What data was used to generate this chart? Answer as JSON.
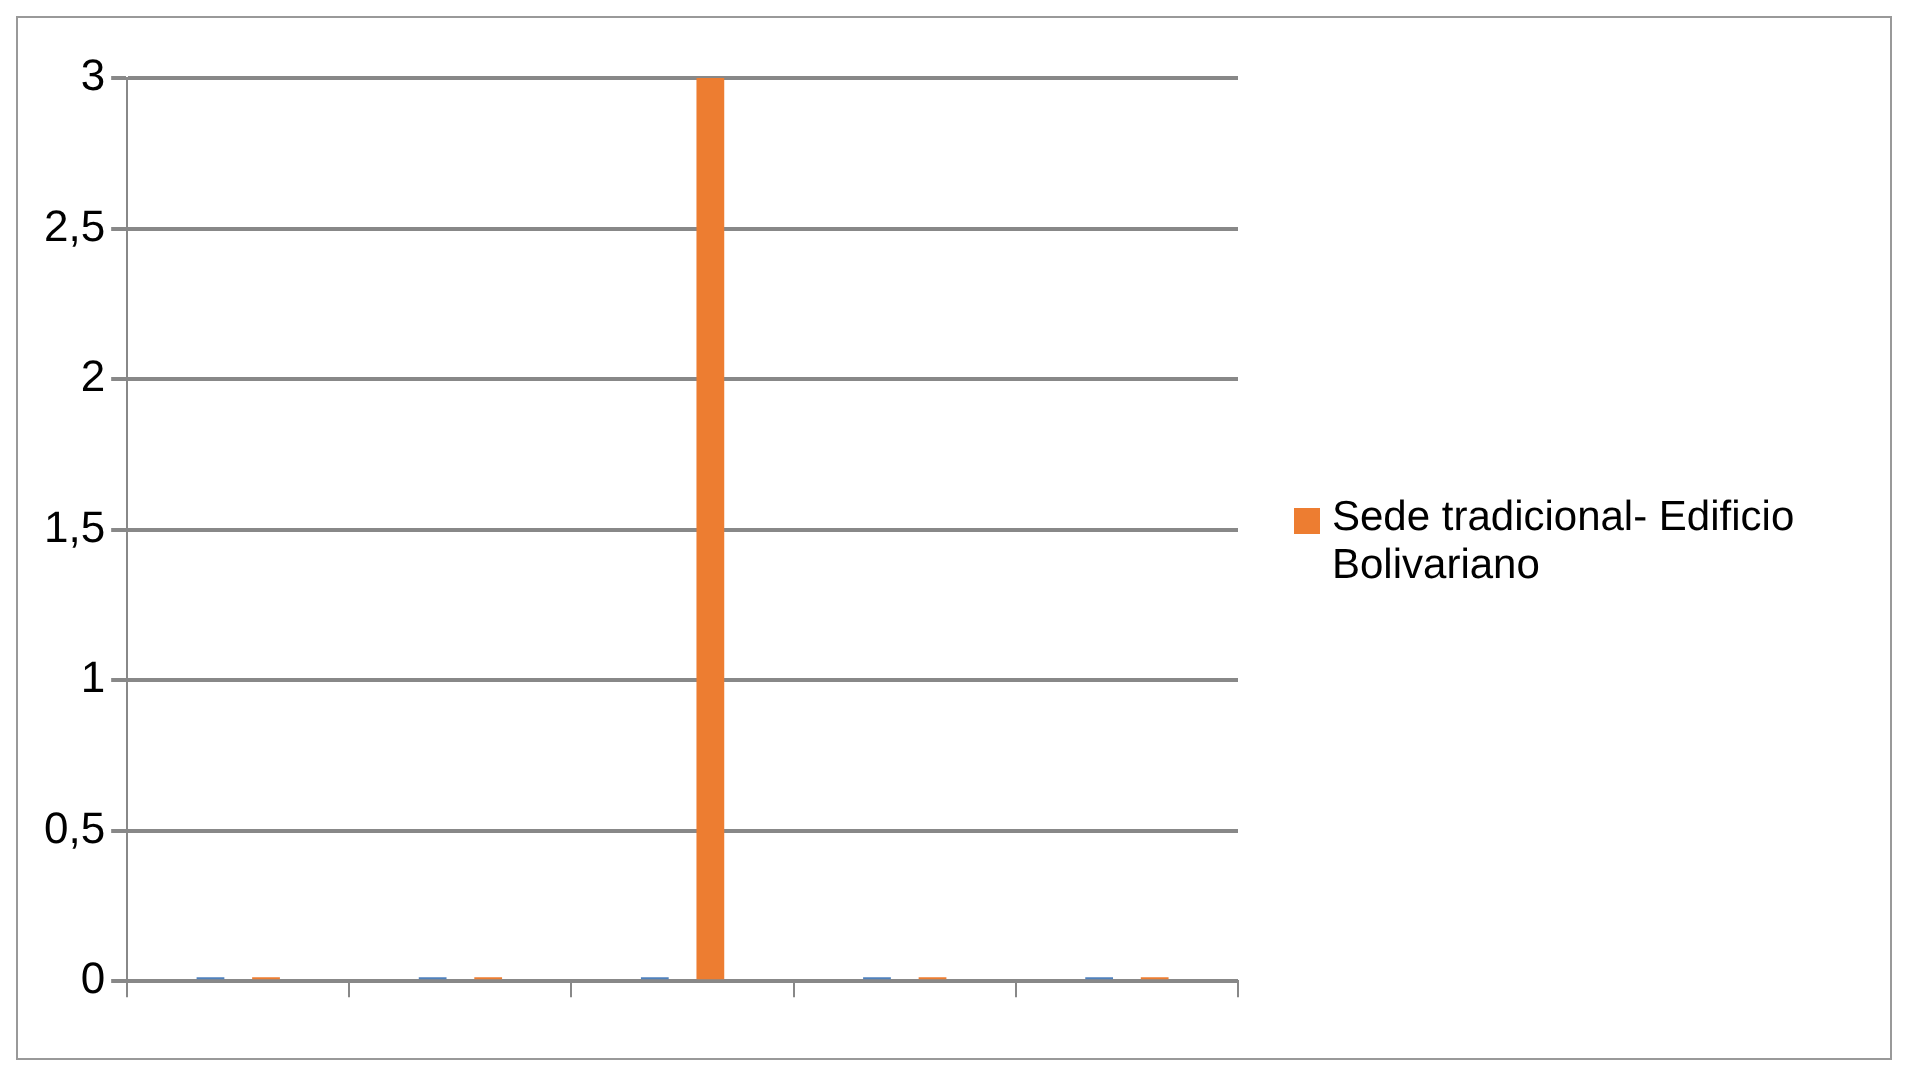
{
  "chart_data": {
    "type": "bar",
    "categories": [
      null,
      null,
      null,
      null,
      null
    ],
    "series": [
      {
        "color": "#4f81bd",
        "values": [
          0,
          0,
          0,
          0,
          0
        ]
      },
      {
        "name": "Sede tradicional- Edificio Bolivariano",
        "color": "#ed7d31",
        "values": [
          0,
          0,
          3,
          0,
          0
        ]
      }
    ],
    "ylim": [
      0,
      3
    ],
    "yticks": [
      0,
      {
        "value": 0.5,
        "label": "0,5"
      },
      1,
      {
        "value": 1.5,
        "label": "1,5"
      },
      2,
      {
        "value": 2.5,
        "label": "2,5"
      },
      3
    ],
    "grid": "y",
    "legend": "right"
  }
}
